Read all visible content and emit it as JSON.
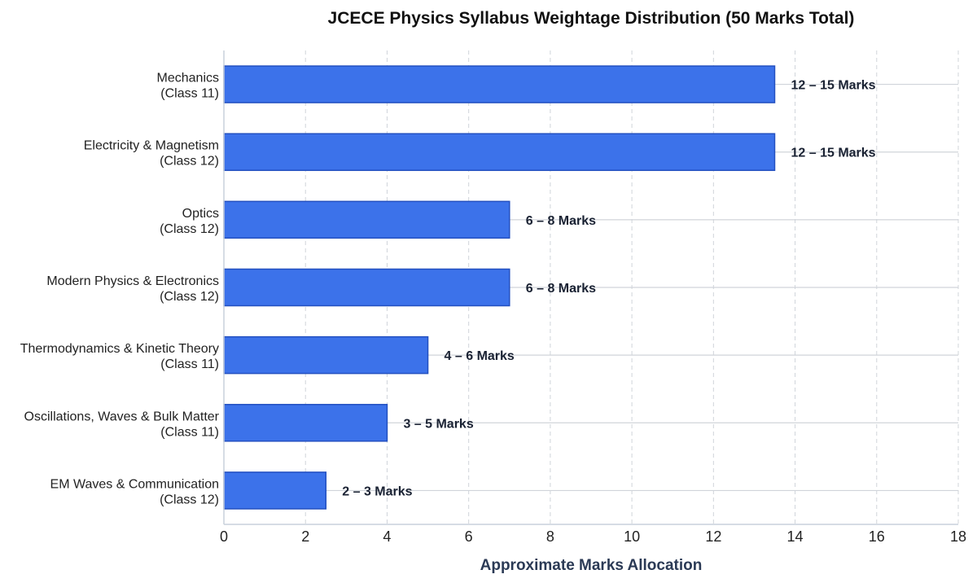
{
  "chart_data": {
    "type": "bar",
    "orientation": "horizontal",
    "title": "JCECE Physics Syllabus Weightage Distribution (50 Marks Total)",
    "xlabel": "Approximate Marks Allocation",
    "ylabel": "",
    "xlim": [
      0,
      18
    ],
    "xticks": [
      0,
      2,
      4,
      6,
      8,
      10,
      12,
      14,
      16,
      18
    ],
    "grid": true,
    "categories": [
      {
        "name": "Mechanics",
        "class": "(Class 11)"
      },
      {
        "name": "Electricity & Magnetism",
        "class": "(Class 12)"
      },
      {
        "name": "Optics",
        "class": "(Class 12)"
      },
      {
        "name": "Modern Physics & Electronics",
        "class": "(Class 12)"
      },
      {
        "name": "Thermodynamics & Kinetic Theory",
        "class": "(Class 11)"
      },
      {
        "name": "Oscillations, Waves & Bulk Matter",
        "class": "(Class 11)"
      },
      {
        "name": "EM Waves & Communication",
        "class": "(Class 12)"
      }
    ],
    "values": [
      13.5,
      13.5,
      7,
      7,
      5,
      4,
      2.5
    ],
    "data_labels": [
      "12 – 15 Marks",
      "12 – 15 Marks",
      "6 – 8 Marks",
      "6 – 8 Marks",
      "4 – 6 Marks",
      "3 – 5 Marks",
      "2 – 3 Marks"
    ],
    "colors": {
      "bar_fill": "#3c72ea",
      "bar_stroke": "#2350c0",
      "grid": "#d0d4da",
      "axis": "#c8d0dc"
    }
  }
}
